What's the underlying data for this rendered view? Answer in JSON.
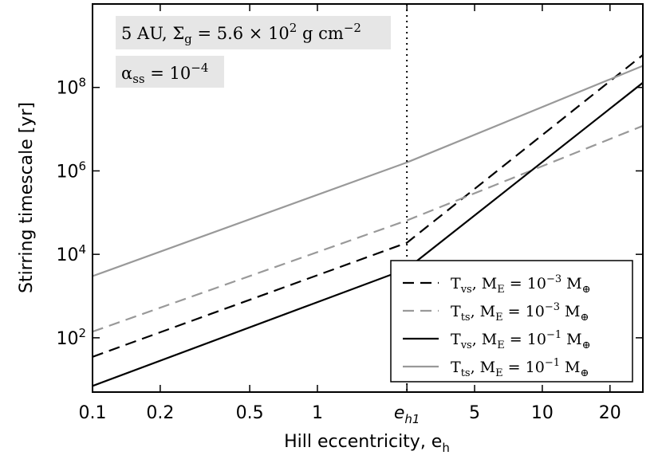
{
  "chart_data": {
    "type": "line",
    "xlabel": "Hill eccentricity, e_h",
    "ylabel": "Stirring timescale [yr]",
    "xscale": "log",
    "yscale": "log",
    "xlim": [
      0.1,
      28
    ],
    "ylim": [
      5,
      10000000000
    ],
    "xticks": [
      {
        "value": 0.1,
        "label": "0.1"
      },
      {
        "value": 0.2,
        "label": "0.2"
      },
      {
        "value": 0.5,
        "label": "0.5"
      },
      {
        "value": 1,
        "label": "1"
      },
      {
        "value": 2.5,
        "label": "e_h1"
      },
      {
        "value": 5,
        "label": "5"
      },
      {
        "value": 10,
        "label": "10"
      },
      {
        "value": 20,
        "label": "20"
      }
    ],
    "yticks": [
      {
        "value": 100,
        "label": "10^2"
      },
      {
        "value": 10000,
        "label": "10^4"
      },
      {
        "value": 1000000,
        "label": "10^6"
      },
      {
        "value": 100000000,
        "label": "10^8"
      }
    ],
    "vline": {
      "x": 2.5,
      "style": "dotted",
      "color": "#000000"
    },
    "annotations": [
      "5 AU, Σ_g = 5.6 × 10^2 g cm^−2",
      "α_ss = 10^−4"
    ],
    "legend_position": "lower-right",
    "grid": false,
    "series": [
      {
        "name": "T_vs, M_E = 10^−3 M_⊕",
        "color": "#000000",
        "dash": "dashed",
        "x": [
          0.1,
          2.5,
          28
        ],
        "y": [
          35,
          19000,
          600000000
        ]
      },
      {
        "name": "T_ts, M_E = 10^−3 M_⊕",
        "color": "#999999",
        "dash": "dashed",
        "x": [
          0.1,
          2.5,
          28
        ],
        "y": [
          140,
          65000,
          12000000
        ]
      },
      {
        "name": "T_vs, M_E = 10^−1 M_⊕",
        "color": "#000000",
        "dash": "solid",
        "x": [
          0.1,
          2.5,
          28
        ],
        "y": [
          7,
          4500,
          130000000
        ]
      },
      {
        "name": "T_ts, M_E = 10^−1 M_⊕",
        "color": "#999999",
        "dash": "solid",
        "x": [
          0.1,
          2.5,
          28
        ],
        "y": [
          3000,
          1600000,
          330000000
        ]
      }
    ]
  }
}
